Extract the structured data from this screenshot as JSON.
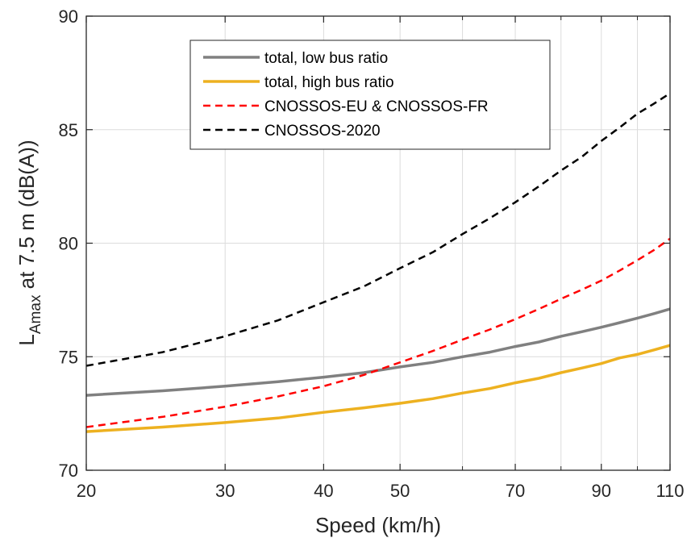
{
  "chart_data": {
    "type": "line",
    "title": "",
    "xlabel": "Speed (km/h)",
    "ylabel_main": "L",
    "ylabel_sub": "Amax",
    "ylabel_rest": " at 7.5 m (dB(A))",
    "x_scale": "log",
    "xlim": [
      20,
      110
    ],
    "ylim": [
      70,
      90
    ],
    "x_ticks": [
      20,
      30,
      40,
      50,
      70,
      90,
      110
    ],
    "x_tick_labels": [
      "20",
      "30",
      "40",
      "50",
      "70",
      "90",
      "110"
    ],
    "x_minor_grid": [
      60,
      80,
      100
    ],
    "y_ticks": [
      70,
      75,
      80,
      85,
      90
    ],
    "y_tick_labels": [
      "70",
      "75",
      "80",
      "85",
      "90"
    ],
    "grid": true,
    "legend_position": "top-center",
    "x": [
      20,
      25,
      30,
      35,
      40,
      45,
      50,
      55,
      60,
      65,
      70,
      75,
      80,
      85,
      90,
      95,
      100,
      105,
      110
    ],
    "series": [
      {
        "name": "total, low bus ratio",
        "color": "#808080",
        "style": "solid",
        "values": [
          73.3,
          73.5,
          73.7,
          73.9,
          74.1,
          74.3,
          74.55,
          74.75,
          75.0,
          75.2,
          75.45,
          75.65,
          75.9,
          76.1,
          76.3,
          76.5,
          76.7,
          76.9,
          77.1
        ]
      },
      {
        "name": "total, high bus ratio",
        "color": "#EDB120",
        "style": "solid",
        "values": [
          71.7,
          71.9,
          72.1,
          72.3,
          72.55,
          72.75,
          72.95,
          73.15,
          73.4,
          73.6,
          73.85,
          74.05,
          74.3,
          74.5,
          74.7,
          74.95,
          75.1,
          75.3,
          75.5
        ]
      },
      {
        "name": "CNOSSOS-EU & CNOSSOS-FR",
        "color": "#FF0000",
        "style": "dashed",
        "values": [
          71.9,
          72.35,
          72.8,
          73.25,
          73.7,
          74.2,
          74.75,
          75.25,
          75.75,
          76.2,
          76.65,
          77.1,
          77.55,
          77.95,
          78.35,
          78.8,
          79.25,
          79.7,
          80.2
        ]
      },
      {
        "name": "CNOSSOS-2020",
        "color": "#000000",
        "style": "dashed",
        "values": [
          74.6,
          75.2,
          75.9,
          76.6,
          77.4,
          78.1,
          78.9,
          79.6,
          80.4,
          81.1,
          81.8,
          82.5,
          83.2,
          83.8,
          84.5,
          85.1,
          85.7,
          86.15,
          86.6
        ]
      }
    ]
  }
}
